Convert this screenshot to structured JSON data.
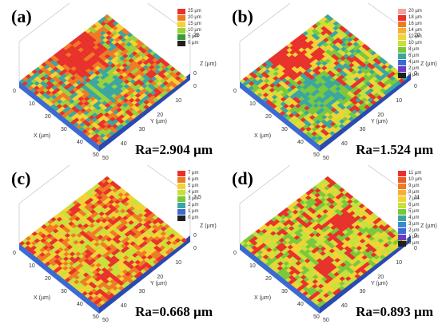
{
  "panels": [
    {
      "id": "a",
      "label": "(a)",
      "ra_value": "2.904",
      "ra_unit": "µm",
      "ra_prefix": "Ra",
      "legend": [
        "25 µm",
        "20 µm",
        "15 µm",
        "10 µm",
        "5 µm",
        "0 µm"
      ],
      "legend_colors": [
        "#e8312a",
        "#f07a24",
        "#f4d234",
        "#9ad23a",
        "#3a9a3a",
        "#202020"
      ],
      "x_axis_label": "X (µm)",
      "y_axis_label": "Y (µm)",
      "z_axis_label": "Z (µm)",
      "x_ticks": [
        "0",
        "10",
        "20",
        "30",
        "40",
        "50"
      ],
      "y_ticks": [
        "0",
        "10",
        "20",
        "30",
        "40",
        "50"
      ],
      "z_ticks": [
        "25",
        "0"
      ],
      "dominant": [
        "#f4d234",
        "#e8312a",
        "#9ad23a",
        "#3aa6a0",
        "#f07a24"
      ]
    },
    {
      "id": "b",
      "label": "(b)",
      "ra_value": "1.524",
      "ra_unit": "µm",
      "ra_prefix": "Ra",
      "legend": [
        "20 µm",
        "18 µm",
        "16 µm",
        "14 µm",
        "12 µm",
        "10 µm",
        "8 µm",
        "6 µm",
        "4 µm",
        "2 µm",
        "0 µm"
      ],
      "legend_colors": [
        "#f4a0a0",
        "#e8312a",
        "#f07a24",
        "#f4b034",
        "#f4d234",
        "#c8e03a",
        "#7ac83a",
        "#3aa6a0",
        "#3a6ad2",
        "#6a3ac8",
        "#202020"
      ],
      "x_axis_label": "X (µm)",
      "y_axis_label": "Y (µm)",
      "z_axis_label": "Z (µm)",
      "x_ticks": [
        "0",
        "10",
        "20",
        "30",
        "40",
        "50"
      ],
      "y_ticks": [
        "0",
        "10",
        "20",
        "30",
        "40",
        "50"
      ],
      "z_ticks": [
        "20",
        "0"
      ],
      "dominant": [
        "#c8e03a",
        "#f4d234",
        "#e8312a",
        "#7ac83a",
        "#3aa6a0"
      ]
    },
    {
      "id": "c",
      "label": "(c)",
      "ra_value": "0.668",
      "ra_unit": "µm",
      "ra_prefix": "Ra",
      "legend": [
        "7 µm",
        "6 µm",
        "5 µm",
        "4 µm",
        "3 µm",
        "2 µm",
        "1 µm",
        "0 µm"
      ],
      "legend_colors": [
        "#e8312a",
        "#f07a24",
        "#f4d234",
        "#c8e03a",
        "#7ac83a",
        "#3aa6a0",
        "#3a6ad2",
        "#202020"
      ],
      "x_axis_label": "X (µm)",
      "y_axis_label": "Y (µm)",
      "z_axis_label": "Z (µm)",
      "x_ticks": [
        "0",
        "10",
        "20",
        "30",
        "40",
        "50"
      ],
      "y_ticks": [
        "0",
        "10",
        "20",
        "30",
        "40",
        "50"
      ],
      "z_ticks": [
        "7.5",
        "0"
      ],
      "dominant": [
        "#f4d234",
        "#f07a24",
        "#e8312a",
        "#c8e03a"
      ]
    },
    {
      "id": "d",
      "label": "(d)",
      "ra_value": "0.893",
      "ra_unit": "µm",
      "ra_prefix": "Ra",
      "legend": [
        "11 µm",
        "10 µm",
        "9 µm",
        "8 µm",
        "7 µm",
        "6 µm",
        "5 µm",
        "4 µm",
        "3 µm",
        "2 µm",
        "1 µm",
        "0 µm"
      ],
      "legend_colors": [
        "#e8312a",
        "#f05a24",
        "#f07a24",
        "#f4b034",
        "#f4d234",
        "#c8e03a",
        "#7ac83a",
        "#3aa6a0",
        "#3a8ad2",
        "#3a6ad2",
        "#6a3ac8",
        "#202020"
      ],
      "x_axis_label": "X (µm)",
      "y_axis_label": "Y (µm)",
      "z_axis_label": "Z (µm)",
      "x_ticks": [
        "0",
        "10",
        "20",
        "30",
        "40",
        "50"
      ],
      "y_ticks": [
        "0",
        "10",
        "20",
        "30",
        "40",
        "50"
      ],
      "z_ticks": [
        "11",
        "0"
      ],
      "dominant": [
        "#c8e03a",
        "#7ac83a",
        "#f4d234",
        "#e8312a"
      ]
    }
  ]
}
